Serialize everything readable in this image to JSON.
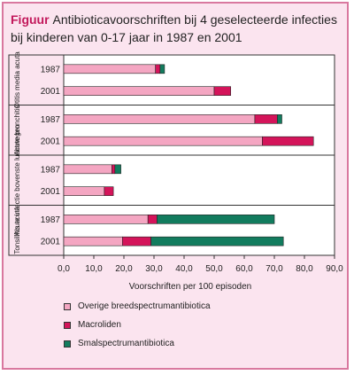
{
  "title": {
    "lead": "Figuur",
    "text": "Antibioticavoorschriften bij 4 geselecteerde infecties bij kinderen van 0-17 jaar in 1987 en 2001"
  },
  "chart_data": {
    "type": "bar",
    "orientation": "horizontal",
    "stacked": true,
    "xlabel": "Voorschriften per 100 episoden",
    "xlim": [
      0,
      90
    ],
    "xticks": [
      "0,0",
      "10,0",
      "20,0",
      "30,0",
      "40,0",
      "50,0",
      "60,0",
      "70,0",
      "80,0",
      "90,0"
    ],
    "groups": [
      {
        "label": "Otitis media acuta",
        "years": [
          "1987",
          "2001"
        ]
      },
      {
        "label": "Acute bronchitis",
        "years": [
          "1987",
          "2001"
        ]
      },
      {
        "label": "Acute infectie bovenste luchtwegen",
        "years": [
          "1987",
          "2001"
        ]
      },
      {
        "label": "Tonsillitis acuta",
        "years": [
          "1987",
          "2001"
        ]
      }
    ],
    "series": [
      {
        "name": "Overige breedspectrumantibiotica",
        "color": "#f4a6c2",
        "values": [
          30.5,
          50.0,
          63.5,
          66.0,
          16.0,
          13.5,
          28.0,
          19.5
        ]
      },
      {
        "name": "Macroliden",
        "color": "#d4145a",
        "values": [
          1.5,
          5.5,
          7.5,
          17.0,
          1.0,
          3.0,
          3.0,
          9.5
        ]
      },
      {
        "name": "Smalspectrumantibiotica",
        "color": "#127c5e",
        "values": [
          1.5,
          0,
          1.5,
          0,
          2.0,
          0,
          39.0,
          44.0
        ]
      }
    ],
    "legend_position": "bottom",
    "grid": false
  }
}
